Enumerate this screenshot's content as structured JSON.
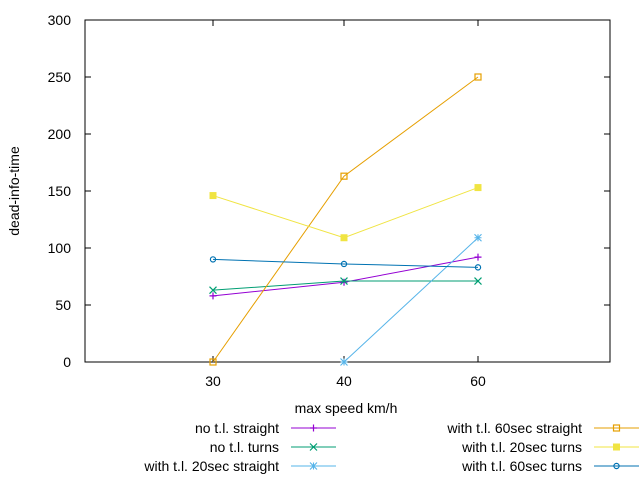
{
  "chart_data": {
    "type": "line",
    "xlabel": "max speed km/h",
    "ylabel": "dead-info-time",
    "categories": [
      "30",
      "40",
      "60"
    ],
    "ylim": [
      0,
      300
    ],
    "yticks": [
      "0",
      "50",
      "100",
      "150",
      "200",
      "250",
      "300"
    ],
    "grid": false,
    "legend_position": "bottom",
    "series": [
      {
        "name": "no t.l. straight",
        "values": [
          58,
          70,
          92
        ],
        "color": "#9400d3",
        "marker": "plus"
      },
      {
        "name": "no t.l. turns",
        "values": [
          63,
          71,
          71
        ],
        "color": "#009e73",
        "marker": "cross"
      },
      {
        "name": "with t.l. 20sec straight",
        "values": [
          null,
          0,
          109
        ],
        "color": "#56b4e9",
        "marker": "star"
      },
      {
        "name": "with t.l. 60sec straight",
        "values": [
          0,
          163,
          250
        ],
        "color": "#e69f00",
        "marker": "open-square"
      },
      {
        "name": "with t.l. 20sec turns",
        "values": [
          146,
          109,
          153
        ],
        "color": "#f0e442",
        "marker": "filled-square"
      },
      {
        "name": "with t.l. 60sec turns",
        "values": [
          90,
          86,
          83
        ],
        "color": "#0072b2",
        "marker": "open-circle"
      }
    ]
  }
}
